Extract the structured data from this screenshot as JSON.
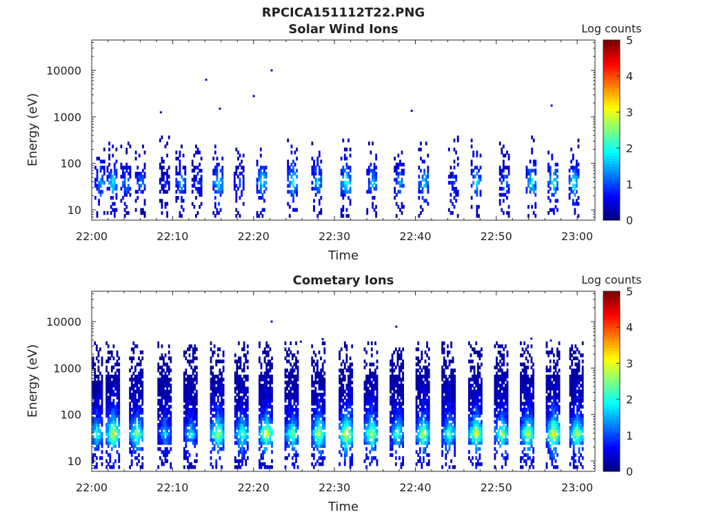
{
  "figure": {
    "title": "RPCICA151112T22.PNG"
  },
  "chart_data": [
    {
      "type": "heatmap",
      "title": "Solar Wind Ions",
      "xlabel": "Time",
      "ylabel": "Energy (eV)",
      "x_ticks": [
        "22:00",
        "22:10",
        "22:20",
        "22:30",
        "22:40",
        "22:50",
        "23:00"
      ],
      "x_range_minutes": [
        0,
        62
      ],
      "y_ticks": [
        "10",
        "100",
        "1000",
        "10000"
      ],
      "y_scale": "log",
      "y_range": [
        6,
        45000
      ],
      "colorbar": {
        "label": "Log counts",
        "ticks": [
          "0",
          "1",
          "2",
          "3",
          "4",
          "5"
        ],
        "range": [
          0,
          5
        ],
        "colormap": "jet"
      },
      "bursts_minute": [
        1,
        2.5,
        4.2,
        6,
        9,
        11,
        13,
        15.6,
        18.2,
        21,
        24.8,
        27.8,
        31.4,
        34.6,
        38,
        41,
        44.7,
        47.5,
        51,
        54.3,
        57,
        59.6
      ],
      "burst_peak_log_counts": [
        1.6,
        2.0,
        1.5,
        1.4,
        0.8,
        1.6,
        1.0,
        2.0,
        1.0,
        2.1,
        2.2,
        1.8,
        2.3,
        1.7,
        1.6,
        1.9,
        1.0,
        1.9,
        1.4,
        2.1,
        2.2,
        2.2
      ],
      "band_energy_eV": [
        20,
        80
      ],
      "isolated_points": [
        {
          "time_minute": 14.1,
          "energy_eV": 6300,
          "log_counts": 0.3
        },
        {
          "time_minute": 20.0,
          "energy_eV": 2800,
          "log_counts": 0.3
        },
        {
          "time_minute": 22.2,
          "energy_eV": 10000,
          "log_counts": 0.3
        },
        {
          "time_minute": 15.8,
          "energy_eV": 1500,
          "log_counts": 0.3
        },
        {
          "time_minute": 8.5,
          "energy_eV": 1250,
          "log_counts": 0.3
        },
        {
          "time_minute": 39.5,
          "energy_eV": 1350,
          "log_counts": 0.3
        },
        {
          "time_minute": 56.8,
          "energy_eV": 1750,
          "log_counts": 0.3
        }
      ]
    },
    {
      "type": "heatmap",
      "title": "Cometary Ions",
      "xlabel": "Time",
      "ylabel": "Energy (eV)",
      "x_ticks": [
        "22:00",
        "22:10",
        "22:20",
        "22:30",
        "22:40",
        "22:50",
        "23:00"
      ],
      "x_range_minutes": [
        0,
        62
      ],
      "y_ticks": [
        "10",
        "100",
        "1000",
        "10000"
      ],
      "y_scale": "log",
      "y_range": [
        6,
        45000
      ],
      "colorbar": {
        "label": "Log counts",
        "ticks": [
          "0",
          "1",
          "2",
          "3",
          "4",
          "5"
        ],
        "range": [
          0,
          5
        ],
        "colormap": "jet"
      },
      "bursts_minute": [
        0.5,
        2.6,
        5.5,
        9.0,
        12.2,
        15.5,
        18.5,
        21.5,
        24.7,
        28.0,
        31.4,
        34.5,
        37.7,
        40.9,
        44.1,
        47.4,
        50.6,
        53.8,
        57.0,
        59.9
      ],
      "burst_peak_log_counts": [
        2.3,
        3.3,
        2.8,
        1.8,
        1.9,
        3.0,
        2.5,
        3.2,
        2.6,
        3.0,
        3.4,
        3.0,
        2.4,
        2.9,
        2.5,
        3.2,
        2.8,
        3.0,
        3.4,
        3.0
      ],
      "band_energy_eV": [
        20,
        600
      ],
      "isolated_points": [
        {
          "time_minute": 22.2,
          "energy_eV": 10000,
          "log_counts": 0.3
        },
        {
          "time_minute": 37.6,
          "energy_eV": 7800,
          "log_counts": 0.3
        },
        {
          "time_minute": 25.8,
          "energy_eV": 3700,
          "log_counts": 0.3
        },
        {
          "time_minute": 28.5,
          "energy_eV": 4200,
          "log_counts": 0.3
        },
        {
          "time_minute": 54.3,
          "energy_eV": 4300,
          "log_counts": 0.3
        },
        {
          "time_minute": 56.7,
          "energy_eV": 3900,
          "log_counts": 0.3
        }
      ]
    }
  ]
}
